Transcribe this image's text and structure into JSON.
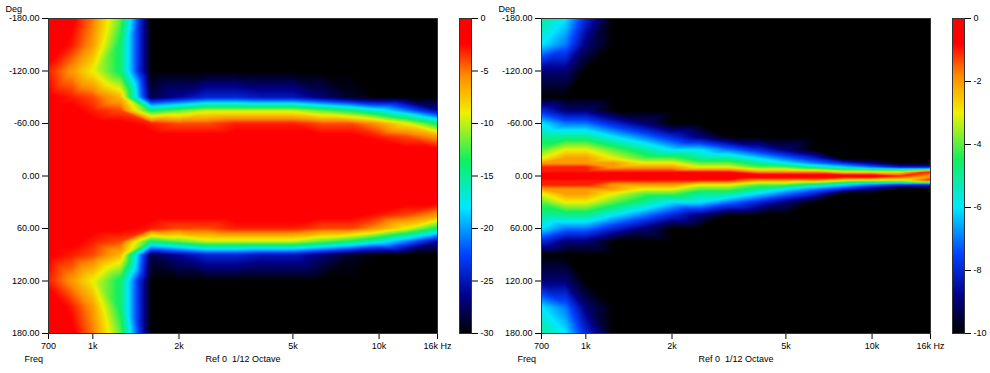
{
  "chart_data": [
    {
      "type": "heatmap",
      "log": "x",
      "y_label": "Deg",
      "x_label": "Ref 0  1/12 Octave",
      "annotations": [
        {
          "text": "Freq"
        }
      ],
      "xlim": [
        700,
        16000
      ],
      "xticks": [
        700,
        {
          "value": 1000,
          "label": "1k"
        },
        {
          "value": 2000,
          "label": "2k"
        },
        {
          "value": 5000,
          "label": "5k"
        },
        {
          "value": 10000,
          "label": "10k"
        },
        {
          "value": 16000,
          "label": "16k Hz"
        }
      ],
      "ylim": [
        180,
        -180
      ],
      "yticks": [
        {
          "value": -180,
          "label": "-180.00"
        },
        {
          "value": -120,
          "label": "-120.00"
        },
        {
          "value": -60,
          "label": "-60.00"
        },
        {
          "value": 0,
          "label": "0.00"
        },
        {
          "value": 60,
          "label": "60.00"
        },
        {
          "value": 120,
          "label": "120.00"
        },
        {
          "value": 180,
          "label": "180.00"
        }
      ],
      "colorbar": {
        "range": [
          -30,
          0
        ],
        "ticks": [
          0,
          -5,
          -10,
          -15,
          -20,
          -25,
          -30
        ]
      },
      "cells": {
        "x": [
          700,
          850,
          1000,
          1250,
          1600,
          2000,
          2500,
          3150,
          4000,
          5000,
          6300,
          8000,
          10000,
          12500,
          16000
        ],
        "y": [
          -180,
          -150,
          -120,
          -90,
          -75,
          -60,
          -45,
          -30,
          -20,
          -15,
          -10,
          -5,
          0,
          5,
          10,
          15,
          20,
          30,
          45,
          60,
          75,
          90,
          120,
          150,
          180
        ],
        "values": [
          [
            0,
            -2,
            -5,
            -12,
            -30,
            -30,
            -30,
            -30,
            -30,
            -30,
            -30,
            -30,
            -30,
            -30,
            -30
          ],
          [
            -1,
            -3,
            -6,
            -14,
            -30,
            -30,
            -30,
            -30,
            -30,
            -30,
            -30,
            -30,
            -30,
            -30,
            -30
          ],
          [
            -3,
            -6,
            -9,
            -14,
            -30,
            -30,
            -30,
            -30,
            -30,
            -30,
            -30,
            -30,
            -30,
            -30,
            -30
          ],
          [
            -2,
            -3,
            -4,
            -7,
            -28,
            -26,
            -24,
            -24,
            -25,
            -25,
            -27,
            -29,
            -30,
            -30,
            -30
          ],
          [
            -2,
            -2,
            -3,
            -4,
            -14,
            -12,
            -10,
            -10,
            -10,
            -10,
            -12,
            -14,
            -17,
            -21,
            -26
          ],
          [
            -1,
            -1,
            -2,
            -2,
            -3,
            -4,
            -4,
            -3,
            -3,
            -3,
            -4,
            -4,
            -6,
            -9,
            -14
          ],
          [
            -1,
            -1,
            -1,
            -1,
            -2,
            -2,
            -2,
            -2,
            -2,
            -2,
            -2,
            -2,
            -3,
            -4,
            -6
          ],
          [
            0,
            0,
            0,
            0,
            -1,
            -1,
            -1,
            -1,
            -1,
            -1,
            -1,
            -1,
            -1,
            -2,
            -2
          ],
          [
            0,
            0,
            0,
            0,
            0,
            0,
            0,
            0,
            0,
            0,
            -1,
            -1,
            -1,
            -1,
            -1
          ],
          [
            0,
            0,
            0,
            0,
            0,
            0,
            0,
            0,
            0,
            0,
            0,
            0,
            -1,
            -1,
            -1
          ],
          [
            0,
            0,
            0,
            0,
            0,
            0,
            0,
            0,
            0,
            0,
            0,
            0,
            0,
            0,
            -1
          ],
          [
            0,
            0,
            0,
            0,
            0,
            0,
            0,
            0,
            0,
            0,
            0,
            0,
            0,
            0,
            0
          ],
          [
            0,
            0,
            0,
            0,
            0,
            0,
            0,
            0,
            0,
            0,
            0,
            0,
            0,
            0,
            0
          ],
          [
            0,
            0,
            0,
            0,
            0,
            0,
            0,
            0,
            0,
            0,
            0,
            0,
            0,
            0,
            0
          ],
          [
            0,
            0,
            0,
            0,
            0,
            0,
            0,
            0,
            0,
            0,
            0,
            0,
            0,
            0,
            -1
          ],
          [
            0,
            0,
            0,
            0,
            0,
            0,
            0,
            0,
            0,
            0,
            0,
            0,
            -1,
            -1,
            -1
          ],
          [
            0,
            0,
            0,
            0,
            0,
            0,
            0,
            0,
            0,
            0,
            -1,
            -1,
            -1,
            -1,
            -1
          ],
          [
            0,
            0,
            0,
            0,
            -1,
            -1,
            -1,
            -1,
            -1,
            -1,
            -1,
            -1,
            -1,
            -2,
            -2
          ],
          [
            -1,
            -1,
            -1,
            -1,
            -2,
            -2,
            -2,
            -2,
            -2,
            -2,
            -2,
            -2,
            -3,
            -4,
            -6
          ],
          [
            -1,
            -1,
            -2,
            -2,
            -3,
            -4,
            -4,
            -3,
            -3,
            -3,
            -4,
            -4,
            -6,
            -9,
            -14
          ],
          [
            -2,
            -2,
            -3,
            -4,
            -14,
            -12,
            -10,
            -10,
            -10,
            -10,
            -12,
            -14,
            -17,
            -21,
            -26
          ],
          [
            -2,
            -3,
            -4,
            -7,
            -28,
            -26,
            -24,
            -24,
            -25,
            -25,
            -27,
            -29,
            -30,
            -30,
            -30
          ],
          [
            -3,
            -6,
            -9,
            -14,
            -30,
            -30,
            -30,
            -30,
            -30,
            -30,
            -30,
            -30,
            -30,
            -30,
            -30
          ],
          [
            -1,
            -3,
            -6,
            -14,
            -30,
            -30,
            -30,
            -30,
            -30,
            -30,
            -30,
            -30,
            -30,
            -30,
            -30
          ],
          [
            0,
            -2,
            -5,
            -12,
            -30,
            -30,
            -30,
            -30,
            -30,
            -30,
            -30,
            -30,
            -30,
            -30,
            -30
          ]
        ]
      }
    },
    {
      "type": "heatmap",
      "log": "x",
      "y_label": "Deg",
      "x_label": "Ref 0  1/12 Octave",
      "annotations": [
        {
          "text": "Freq"
        }
      ],
      "xlim": [
        700,
        16000
      ],
      "xticks": [
        700,
        {
          "value": 1000,
          "label": "1k"
        },
        {
          "value": 2000,
          "label": "2k"
        },
        {
          "value": 5000,
          "label": "5k"
        },
        {
          "value": 10000,
          "label": "10k"
        },
        {
          "value": 16000,
          "label": "16k Hz"
        }
      ],
      "ylim": [
        180,
        -180
      ],
      "yticks": [
        {
          "value": -180,
          "label": "-180.00"
        },
        {
          "value": -120,
          "label": "-120.00"
        },
        {
          "value": -60,
          "label": "-60.00"
        },
        {
          "value": 0,
          "label": "0.00"
        },
        {
          "value": 60,
          "label": "60.00"
        },
        {
          "value": 120,
          "label": "120.00"
        },
        {
          "value": 180,
          "label": "180.00"
        }
      ],
      "colorbar": {
        "range": [
          -10,
          0
        ],
        "ticks": [
          0,
          -2,
          -4,
          -6,
          -8,
          -10
        ]
      },
      "cells": {
        "x": [
          700,
          850,
          1000,
          1250,
          1600,
          2000,
          2500,
          3150,
          4000,
          5000,
          6300,
          8000,
          10000,
          12500,
          16000
        ],
        "y": [
          -180,
          -150,
          -120,
          -90,
          -75,
          -60,
          -45,
          -30,
          -20,
          -15,
          -10,
          -5,
          0,
          5,
          10,
          15,
          20,
          30,
          45,
          60,
          75,
          90,
          120,
          150,
          180
        ],
        "values": [
          [
            -5,
            -6,
            -8,
            -10,
            -10,
            -10,
            -10,
            -10,
            -10,
            -10,
            -10,
            -10,
            -10,
            -10,
            -10
          ],
          [
            -6,
            -7,
            -9,
            -10,
            -10,
            -10,
            -10,
            -10,
            -10,
            -10,
            -10,
            -10,
            -10,
            -10,
            -10
          ],
          [
            -9,
            -9,
            -10,
            -10,
            -10,
            -10,
            -10,
            -10,
            -10,
            -10,
            -10,
            -10,
            -10,
            -10,
            -10
          ],
          [
            -10,
            -10,
            -10,
            -10,
            -10,
            -10,
            -10,
            -10,
            -10,
            -10,
            -10,
            -10,
            -10,
            -10,
            -10
          ],
          [
            -8,
            -9,
            -9,
            -10,
            -10,
            -10,
            -10,
            -10,
            -10,
            -10,
            -10,
            -10,
            -10,
            -10,
            -10
          ],
          [
            -6,
            -7,
            -7,
            -8,
            -9,
            -10,
            -10,
            -10,
            -10,
            -10,
            -10,
            -10,
            -10,
            -10,
            -10
          ],
          [
            -5,
            -5,
            -5,
            -6,
            -7,
            -8,
            -9,
            -10,
            -10,
            -10,
            -10,
            -10,
            -10,
            -10,
            -10
          ],
          [
            -4,
            -3,
            -3,
            -4,
            -5,
            -6,
            -6,
            -7,
            -8,
            -9,
            -10,
            -10,
            -10,
            -10,
            -10
          ],
          [
            -3,
            -2,
            -2,
            -3,
            -4,
            -4,
            -5,
            -5,
            -6,
            -7,
            -8,
            -10,
            -10,
            -10,
            -10
          ],
          [
            -2,
            -2,
            -2,
            -2,
            -3,
            -3,
            -4,
            -4,
            -5,
            -6,
            -7,
            -8,
            -9,
            -10,
            -10
          ],
          [
            -1,
            -1,
            -1,
            -2,
            -2,
            -2,
            -3,
            -3,
            -4,
            -4,
            -5,
            -6,
            -7,
            -8,
            -8
          ],
          [
            -1,
            -1,
            -1,
            -1,
            -1,
            -1,
            -1,
            -1,
            -2,
            -2,
            -2,
            -3,
            -3,
            -3,
            -1
          ],
          [
            0,
            0,
            0,
            0,
            0,
            0,
            0,
            0,
            0,
            0,
            0,
            0,
            0,
            -1,
            -2
          ],
          [
            -1,
            -1,
            -1,
            -1,
            -1,
            -1,
            -1,
            -1,
            -2,
            -2,
            -2,
            -3,
            -3,
            -3,
            -1
          ],
          [
            -1,
            -1,
            -1,
            -2,
            -2,
            -2,
            -3,
            -3,
            -4,
            -4,
            -5,
            -6,
            -7,
            -8,
            -8
          ],
          [
            -2,
            -2,
            -2,
            -2,
            -3,
            -3,
            -4,
            -4,
            -5,
            -6,
            -7,
            -8,
            -9,
            -10,
            -10
          ],
          [
            -3,
            -2,
            -2,
            -3,
            -4,
            -4,
            -5,
            -5,
            -6,
            -7,
            -8,
            -10,
            -10,
            -10,
            -10
          ],
          [
            -4,
            -3,
            -3,
            -4,
            -5,
            -6,
            -6,
            -7,
            -8,
            -9,
            -10,
            -10,
            -10,
            -10,
            -10
          ],
          [
            -5,
            -5,
            -5,
            -6,
            -7,
            -8,
            -9,
            -10,
            -10,
            -10,
            -10,
            -10,
            -10,
            -10,
            -10
          ],
          [
            -6,
            -7,
            -7,
            -8,
            -9,
            -10,
            -10,
            -10,
            -10,
            -10,
            -10,
            -10,
            -10,
            -10,
            -10
          ],
          [
            -8,
            -9,
            -9,
            -10,
            -10,
            -10,
            -10,
            -10,
            -10,
            -10,
            -10,
            -10,
            -10,
            -10,
            -10
          ],
          [
            -10,
            -10,
            -10,
            -10,
            -10,
            -10,
            -10,
            -10,
            -10,
            -10,
            -10,
            -10,
            -10,
            -10,
            -10
          ],
          [
            -9,
            -9,
            -10,
            -10,
            -10,
            -10,
            -10,
            -10,
            -10,
            -10,
            -10,
            -10,
            -10,
            -10,
            -10
          ],
          [
            -6,
            -7,
            -9,
            -10,
            -10,
            -10,
            -10,
            -10,
            -10,
            -10,
            -10,
            -10,
            -10,
            -10,
            -10
          ],
          [
            -5,
            -6,
            -8,
            -10,
            -10,
            -10,
            -10,
            -10,
            -10,
            -10,
            -10,
            -10,
            -10,
            -10,
            -10
          ]
        ]
      }
    }
  ]
}
